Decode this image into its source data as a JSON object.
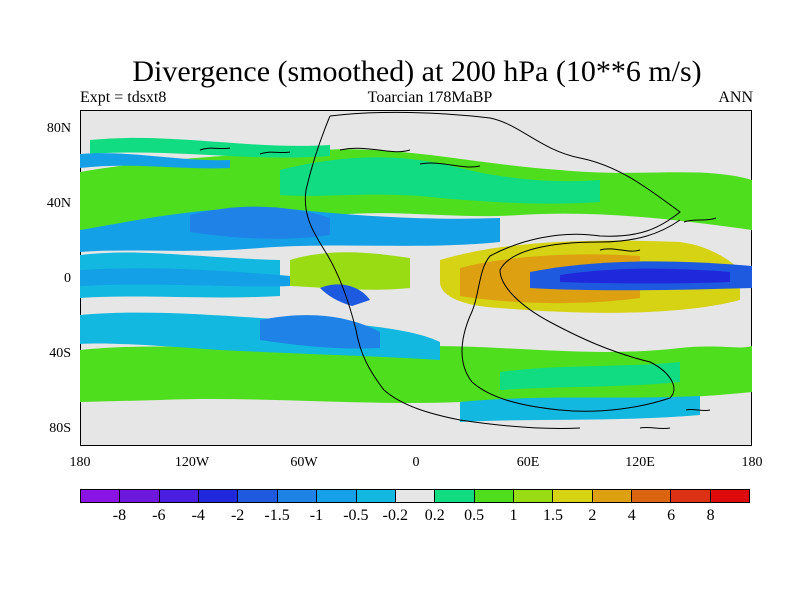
{
  "figure": {
    "title": "Divergence (smoothed) at 200 hPa (10**6 m/s)",
    "left_label": "Expt = tdsxt8",
    "center_label": "Toarcian 178MaBP",
    "right_label": "ANN"
  },
  "axes": {
    "y_ticks": [
      "80N",
      "40N",
      "0",
      "40S",
      "80S"
    ],
    "x_ticks": [
      "180",
      "120W",
      "60W",
      "0",
      "60E",
      "120E",
      "180"
    ]
  },
  "colorbar": {
    "labels": [
      "-8",
      "-6",
      "-4",
      "-2",
      "-1.5",
      "-1",
      "-0.5",
      "-0.2",
      "0.2",
      "0.5",
      "1",
      "1.5",
      "2",
      "4",
      "6",
      "8"
    ],
    "colors": [
      "#8a14e6",
      "#6e18de",
      "#4a1ee0",
      "#2028dc",
      "#1e5ae0",
      "#1e82e6",
      "#14a0e6",
      "#12b8e0",
      "#e6e6e6",
      "#12dc82",
      "#4ede1e",
      "#9adc14",
      "#d6d214",
      "#dca010",
      "#dc6410",
      "#dc3214",
      "#dc0a0a"
    ]
  },
  "map_data": {
    "projection": "equirectangular",
    "lon_range": [
      -180,
      180
    ],
    "lat_range": [
      -90,
      90
    ],
    "field": "divergence at 200 hPa, smoothed",
    "features": [
      {
        "name": "northern mid-latitude divergence band",
        "level": "0.2 to 1",
        "lat": [
          20,
          65
        ]
      },
      {
        "name": "tropical pacific convergence",
        "level": "-1 to -0.2",
        "lat": [
          -20,
          20
        ]
      },
      {
        "name": "tethys divergence maximum",
        "level": "1.5 to 4",
        "lon": [
          30,
          130
        ],
        "lat": [
          -15,
          15
        ]
      },
      {
        "name": "eastern tethys convergence core",
        "level": "-4 to -2",
        "lon": [
          80,
          150
        ],
        "lat": [
          -3,
          6
        ]
      },
      {
        "name": "southern mid-latitude divergence band",
        "level": "0.2 to 1",
        "lat": [
          -70,
          -45
        ]
      }
    ]
  }
}
